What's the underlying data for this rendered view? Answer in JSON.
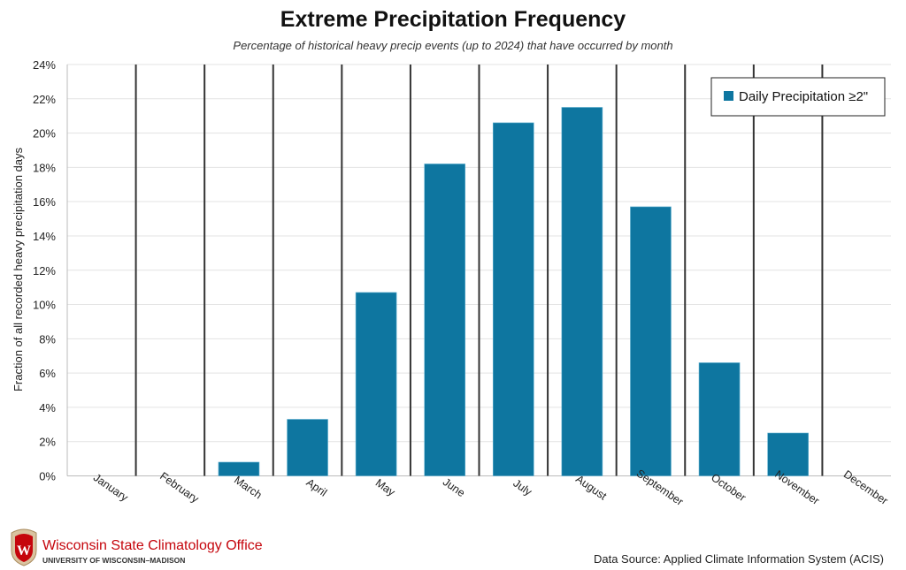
{
  "chart_data": {
    "type": "bar",
    "title": "Extreme Precipitation Frequency",
    "subtitle": "Percentage of historical heavy precip events (up to 2024) that have occurred by month",
    "xlabel": "",
    "ylabel": "Fraction of all recorded heavy precipitation days",
    "categories": [
      "January",
      "February",
      "March",
      "April",
      "May",
      "June",
      "July",
      "August",
      "September",
      "October",
      "November",
      "December"
    ],
    "series": [
      {
        "name": "Daily Precipitation ≥2\"",
        "values": [
          0,
          0,
          0.8,
          3.3,
          10.7,
          18.2,
          20.6,
          21.5,
          15.7,
          6.6,
          2.5,
          0
        ],
        "color": "#0e76a0"
      }
    ],
    "ylim": [
      0,
      24
    ],
    "yticks": [
      "0%",
      "2%",
      "4%",
      "6%",
      "8%",
      "10%",
      "12%",
      "14%",
      "16%",
      "18%",
      "20%",
      "22%",
      "24%"
    ],
    "grid": true,
    "legend": "top-right"
  },
  "footer": {
    "org_name": "Wisconsin State Climatology Office",
    "org_sub": "UNIVERSITY OF WISCONSIN–MADISON",
    "logo_letter": "W",
    "source": "Data Source: Applied Climate Information System (ACIS)"
  }
}
